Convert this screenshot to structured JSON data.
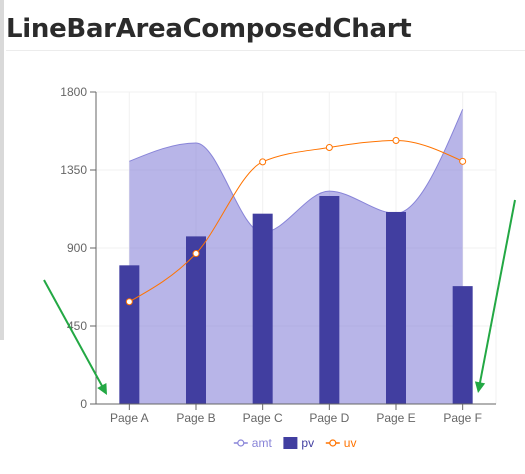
{
  "page": {
    "title": "LineBarAreaComposedChart"
  },
  "chart_data": {
    "type": "composed",
    "categories": [
      "Page A",
      "Page B",
      "Page C",
      "Page D",
      "Page E",
      "Page F"
    ],
    "yticks": [
      0,
      450,
      900,
      1350,
      1800
    ],
    "ylim": [
      0,
      1800
    ],
    "grid": true,
    "legend_position": "bottom",
    "series": [
      {
        "name": "amt",
        "kind": "area",
        "color": "#8884d8",
        "values": [
          1400,
          1506,
          989,
          1228,
          1100,
          1700
        ]
      },
      {
        "name": "pv",
        "kind": "bar",
        "color": "#413ea0",
        "values": [
          800,
          967,
          1098,
          1200,
          1108,
          680
        ]
      },
      {
        "name": "uv",
        "kind": "line",
        "color": "#ff7300",
        "values": [
          590,
          868,
          1397,
          1480,
          1520,
          1400
        ]
      }
    ]
  },
  "annotations": {
    "arrow_color": "#23a844"
  }
}
